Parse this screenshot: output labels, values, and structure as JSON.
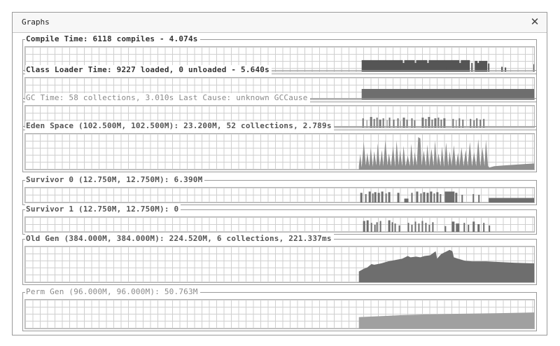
{
  "window": {
    "title": "Graphs",
    "close_icon": "close-icon"
  },
  "graphs": [
    {
      "id": "compile-time",
      "label": "Compile Time: 6118 compiles - 4.074s",
      "color": "#555555"
    },
    {
      "id": "class-loader",
      "label": "Class Loader Time: 9227 loaded, 0 unloaded - 5.640s",
      "color": "#6e6e6e"
    },
    {
      "id": "gc-time",
      "label": "GC Time: 58 collections, 3.010s  Last Cause: unknown GCCause",
      "color": "#777777"
    },
    {
      "id": "eden-space",
      "label": "Eden Space (102.500M, 102.500M): 23.200M, 52 collections, 2.789s",
      "color": "#8e8e8e"
    },
    {
      "id": "survivor-0",
      "label": "Survivor 0 (12.750M, 12.750M): 6.390M",
      "color": "#6e6e6e"
    },
    {
      "id": "survivor-1",
      "label": "Survivor 1 (12.750M, 12.750M): 0",
      "color": "#6e6e6e"
    },
    {
      "id": "old-gen",
      "label": "Old Gen (384.000M, 384.000M): 224.520M, 6 collections, 221.337ms",
      "color": "#6e6e6e"
    },
    {
      "id": "perm-gen",
      "label": "Perm Gen (96.000M, 96.000M): 50.763M",
      "color": "#a0a0a0"
    }
  ]
}
